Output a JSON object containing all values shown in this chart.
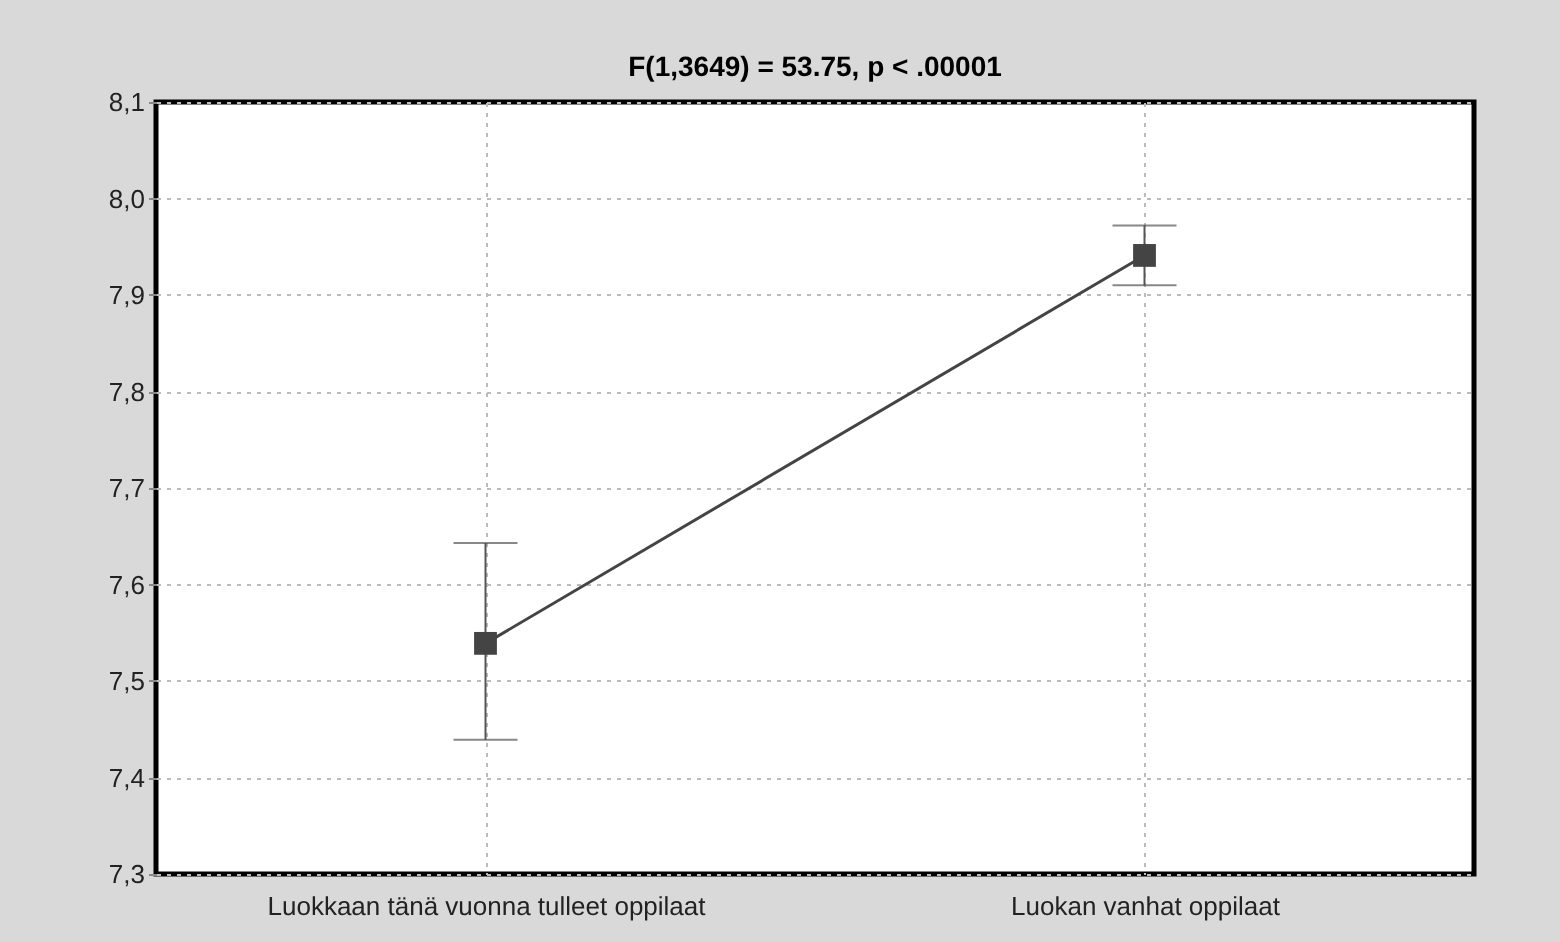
{
  "chart_data": {
    "type": "line",
    "title": "F(1,3649) = 53.75, p < .00001",
    "categories": [
      "Luokkaan tänä vuonna tulleet oppilaat",
      "Luokan vanhat oppilaat"
    ],
    "series": [
      {
        "color": "#444444",
        "values": [
          7.539,
          7.941
        ],
        "errors": [
          [
            7.439,
            7.643
          ],
          [
            7.91,
            7.972
          ]
        ]
      }
    ],
    "ylim": [
      7.3,
      8.1
    ],
    "yticks": [
      {
        "value": 7.3,
        "label": "7,3"
      },
      {
        "value": 7.4,
        "label": "7,4"
      },
      {
        "value": 7.5,
        "label": "7,5"
      },
      {
        "value": 7.6,
        "label": "7,6"
      },
      {
        "value": 7.7,
        "label": "7,7"
      },
      {
        "value": 7.8,
        "label": "7,8"
      },
      {
        "value": 7.9,
        "label": "7,9"
      },
      {
        "value": 8.0,
        "label": "8,0"
      },
      {
        "value": 8.1,
        "label": "8,1"
      }
    ],
    "grid": true,
    "marker": "square",
    "line_style": "solid"
  }
}
